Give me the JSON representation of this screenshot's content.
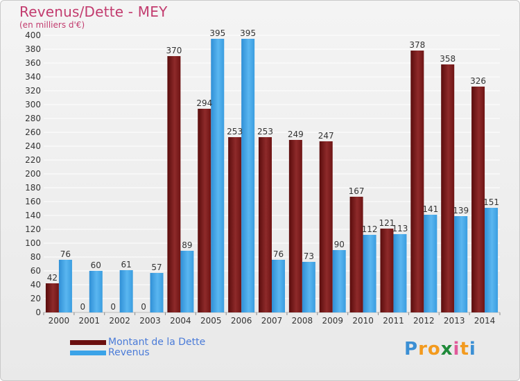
{
  "header": {
    "title": "Revenus/Dette - MEY",
    "subtitle": "(en milliers d'€)"
  },
  "colors": {
    "dette": "#7a1a1a",
    "revenus": "#3ba3e8",
    "grid": "#ffffff",
    "axis_text": "#333333"
  },
  "chart_data": {
    "type": "bar",
    "title": "Revenus/Dette - MEY",
    "subtitle": "(en milliers d'€)",
    "xlabel": "",
    "ylabel": "",
    "ylim": [
      0,
      400
    ],
    "yticks": [
      0,
      20,
      40,
      60,
      80,
      100,
      120,
      140,
      160,
      180,
      200,
      220,
      240,
      260,
      280,
      300,
      320,
      340,
      360,
      380,
      400
    ],
    "categories": [
      "2000",
      "2001",
      "2002",
      "2003",
      "2004",
      "2005",
      "2006",
      "2007",
      "2008",
      "2009",
      "2010",
      "2011",
      "2012",
      "2013",
      "2014"
    ],
    "series": [
      {
        "name": "Montant de la Dette",
        "values": [
          42,
          0,
          0,
          0,
          370,
          294,
          253,
          253,
          249,
          247,
          167,
          121,
          378,
          358,
          326
        ]
      },
      {
        "name": "Revenus",
        "values": [
          76,
          60,
          61,
          57,
          89,
          395,
          395,
          76,
          73,
          90,
          112,
          113,
          141,
          139,
          151
        ]
      }
    ],
    "grid": true,
    "legend": "bottom-left"
  },
  "legend": {
    "items": [
      {
        "label": "Montant de la Dette",
        "color": "#6b0f0f"
      },
      {
        "label": "Revenus",
        "color": "#3ba3e8"
      }
    ]
  },
  "logo": {
    "letters": [
      "P",
      "r",
      "o",
      "x",
      "i",
      "t",
      "i"
    ],
    "icon": "proxiti-logo"
  }
}
